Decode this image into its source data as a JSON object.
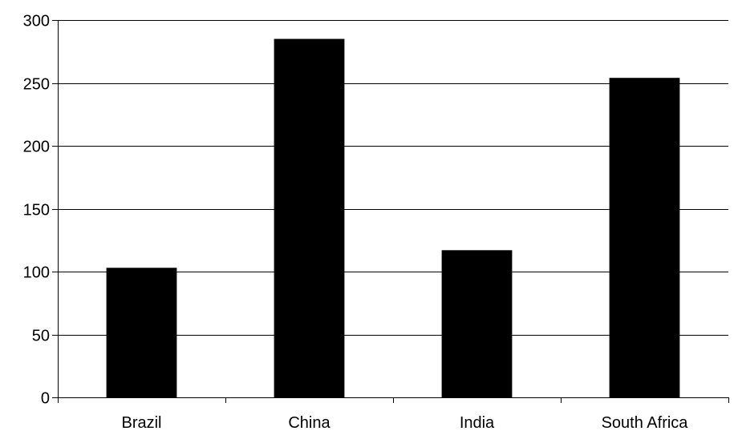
{
  "chart_data": {
    "type": "bar",
    "categories": [
      "Brazil",
      "China",
      "India",
      "South Africa"
    ],
    "values": [
      103,
      285,
      117,
      254
    ],
    "ylim": [
      0,
      300
    ],
    "yticks": [
      0,
      50,
      100,
      150,
      200,
      250,
      300
    ],
    "grid": true,
    "legend": "none",
    "bar_color": "#000000",
    "grid_color": "#000000"
  }
}
